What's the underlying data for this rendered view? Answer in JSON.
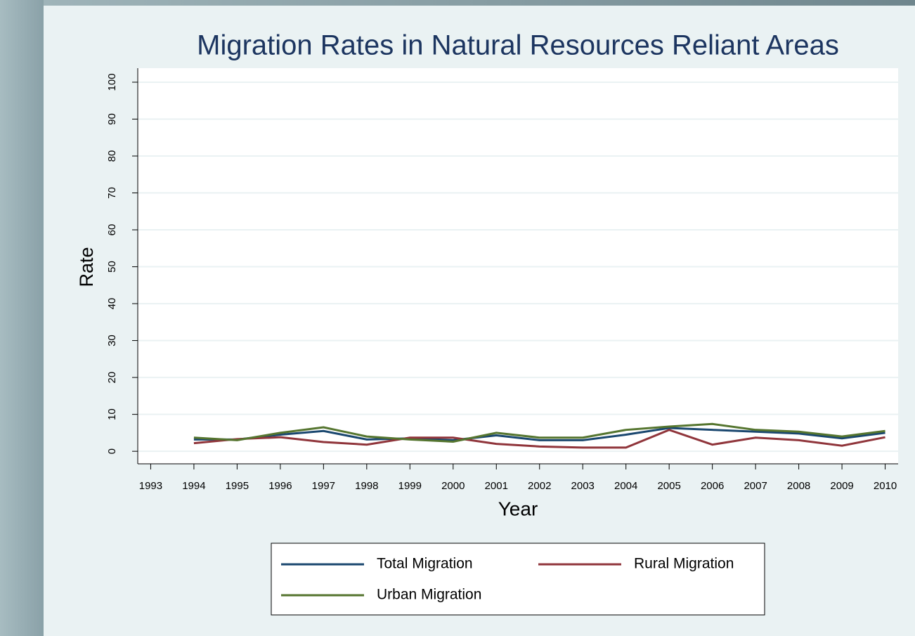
{
  "chart_data": {
    "type": "line",
    "title": "Migration Rates in Natural Resources Reliant Areas",
    "xlabel": "Year",
    "ylabel": "Rate",
    "x": [
      1994,
      1995,
      1996,
      1997,
      1998,
      1999,
      2000,
      2001,
      2002,
      2003,
      2004,
      2005,
      2006,
      2007,
      2008,
      2009,
      2010
    ],
    "series": [
      {
        "name": "Total Migration",
        "color": "#1a476f",
        "values": [
          3.2,
          3.2,
          4.5,
          5.5,
          3.2,
          3.5,
          3.0,
          4.3,
          3.0,
          3.0,
          4.5,
          6.3,
          5.8,
          5.3,
          4.8,
          3.5,
          5.0
        ]
      },
      {
        "name": "Rural Migration",
        "color": "#90353b",
        "values": [
          2.2,
          3.3,
          3.8,
          2.5,
          1.8,
          3.7,
          3.7,
          2.0,
          1.3,
          1.0,
          1.0,
          5.8,
          1.8,
          3.7,
          3.0,
          1.5,
          3.8
        ]
      },
      {
        "name": "Urban Migration",
        "color": "#55752f",
        "values": [
          3.7,
          3.0,
          5.0,
          6.5,
          4.0,
          3.2,
          2.6,
          5.0,
          3.7,
          3.7,
          5.8,
          6.7,
          7.4,
          5.8,
          5.3,
          4.0,
          5.5
        ]
      }
    ],
    "xlim": [
      1992.7,
      2010.3
    ],
    "xticks": [
      1993,
      1994,
      1995,
      1996,
      1997,
      1998,
      1999,
      2000,
      2001,
      2002,
      2003,
      2004,
      2005,
      2006,
      2007,
      2008,
      2009,
      2010
    ],
    "ylim": [
      -3.4,
      103.8
    ],
    "yticks": [
      0,
      10,
      20,
      30,
      40,
      50,
      60,
      70,
      80,
      90,
      100
    ],
    "grid": true,
    "legend": "bottom"
  }
}
